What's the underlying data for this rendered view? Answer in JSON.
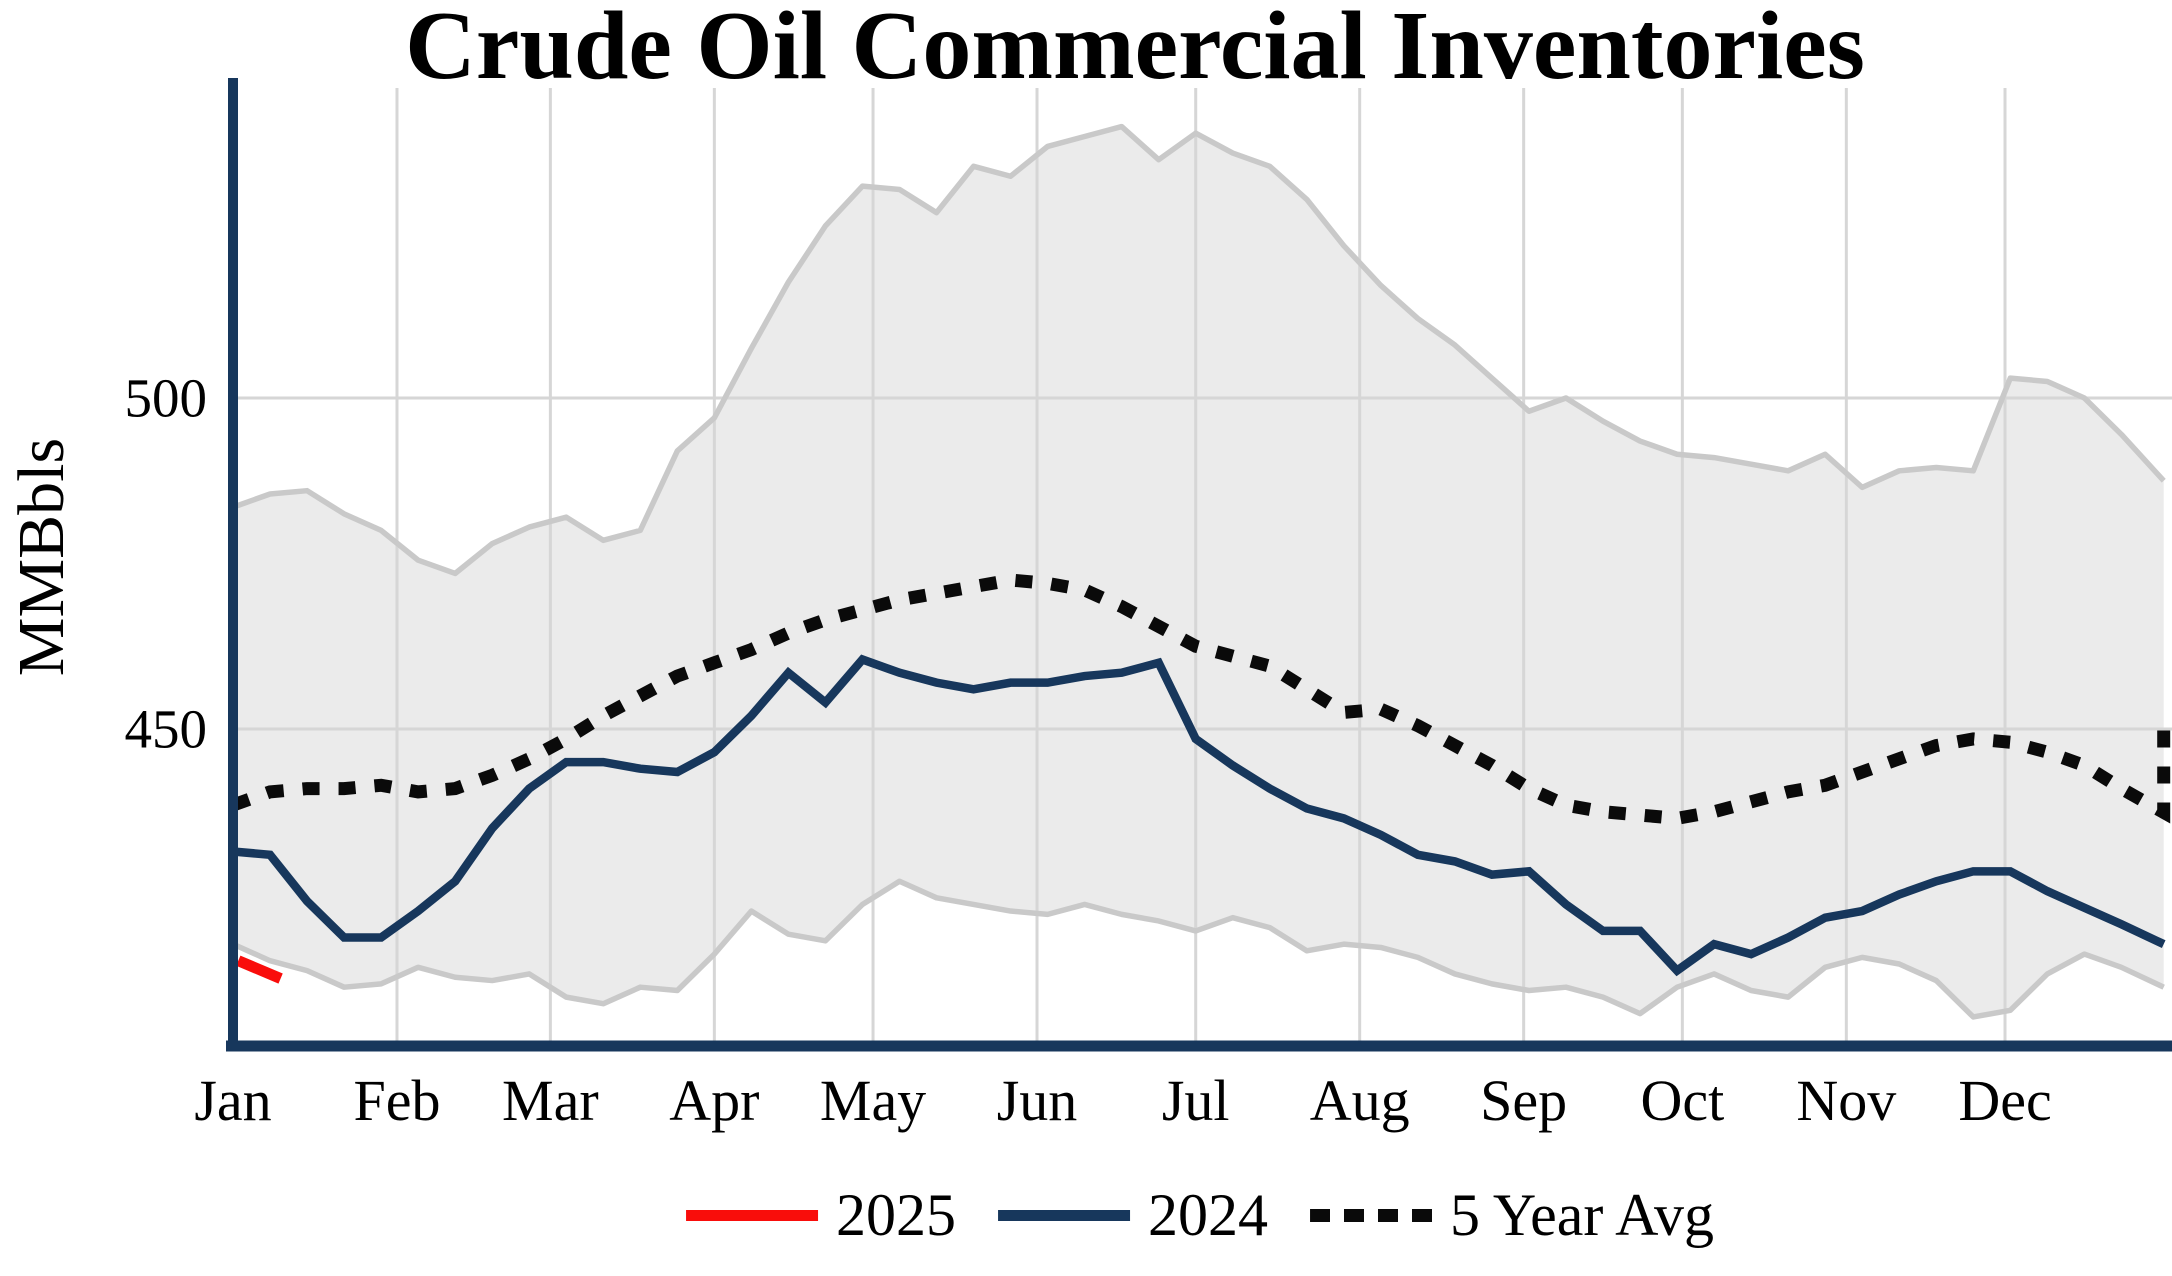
{
  "title": "Crude Oil Commercial Inventories",
  "y_axis": {
    "label": "MMBbls",
    "tick_labels": [
      "450",
      "500"
    ]
  },
  "legend": {
    "items": [
      {
        "label": "2025",
        "color": "#f90d0b",
        "style": "solid"
      },
      {
        "label": "2024",
        "color": "#17375c",
        "style": "solid"
      },
      {
        "label": "5 Year Avg",
        "color": "#0a0a0a",
        "style": "dotted"
      }
    ]
  },
  "colors": {
    "line_2025": "#f90d0b",
    "line_2024": "#17375c",
    "line_avg": "#0a0a0a",
    "band_fill": "#ebebeb",
    "band_edge": "#c9c9c9",
    "gridline": "#d6d6d6",
    "spine": "#17375c"
  },
  "chart_data": {
    "type": "line",
    "title": "Crude Oil Commercial Inventories",
    "xlabel": "",
    "ylabel": "MMBbls",
    "yticks": [
      450,
      500
    ],
    "ylim": [
      402,
      547
    ],
    "grid": true,
    "legend_position": "bottom-center",
    "x_domain_days": [
      0,
      366
    ],
    "month_labels": [
      "Jan",
      "Feb",
      "Mar",
      "Apr",
      "May",
      "Jun",
      "Jul",
      "Aug",
      "Sep",
      "Oct",
      "Nov",
      "Dec"
    ],
    "month_start_days": [
      0,
      31,
      60,
      91,
      121,
      152,
      182,
      213,
      244,
      274,
      305,
      335
    ],
    "band": {
      "name": "5 year range",
      "days": [
        0,
        7,
        14,
        21,
        28,
        35,
        42,
        49,
        56,
        63,
        70,
        77,
        84,
        91,
        98,
        105,
        112,
        119,
        126,
        133,
        140,
        147,
        154,
        161,
        168,
        175,
        182,
        189,
        196,
        203,
        210,
        217,
        224,
        231,
        238,
        245,
        252,
        259,
        266,
        273,
        280,
        287,
        294,
        301,
        308,
        315,
        322,
        329,
        336,
        343,
        350,
        357,
        365
      ],
      "max": [
        483.5,
        485.5,
        486,
        482.5,
        480,
        475.5,
        473.5,
        478,
        480.5,
        482,
        478.5,
        480,
        492,
        497,
        507.5,
        517.5,
        526,
        532,
        531.5,
        528,
        535,
        533.5,
        538,
        539.5,
        541,
        536,
        540,
        537,
        535,
        530,
        523,
        517,
        512,
        508,
        503,
        498,
        500,
        496.5,
        493.5,
        491.5,
        491,
        490,
        489,
        491.5,
        486.5,
        489,
        489.5,
        489,
        503,
        502.5,
        500,
        494.5,
        487.5
      ],
      "min": [
        417.5,
        415,
        413.5,
        411,
        411.5,
        414,
        412.5,
        412,
        413,
        409.5,
        408.5,
        411,
        410.5,
        416,
        422.5,
        419,
        418,
        423.5,
        427,
        424.5,
        423.5,
        422.5,
        422,
        423.5,
        422,
        421,
        419.5,
        421.5,
        420,
        416.5,
        417.5,
        417,
        415.5,
        413,
        411.5,
        410.5,
        411,
        409.5,
        407,
        411,
        413,
        410.5,
        409.5,
        414,
        415.5,
        414.5,
        412,
        406.5,
        407.5,
        413,
        416,
        414,
        411
      ]
    },
    "series": [
      {
        "name": "5 Year Avg",
        "style": "dotted",
        "days": [
          0,
          7,
          14,
          21,
          28,
          35,
          42,
          49,
          56,
          63,
          70,
          77,
          84,
          91,
          98,
          105,
          112,
          119,
          126,
          133,
          140,
          147,
          154,
          161,
          168,
          175,
          182,
          189,
          196,
          203,
          210,
          217,
          224,
          231,
          238,
          245,
          252,
          259,
          266,
          273,
          280,
          287,
          294,
          301,
          308,
          315,
          322,
          329,
          336,
          343,
          350,
          357,
          365,
          365
        ],
        "values": [
          438.5,
          440.5,
          441,
          441,
          441.5,
          440.5,
          441,
          443,
          445.5,
          448.5,
          452,
          455,
          458,
          460,
          462,
          464.5,
          466.5,
          468,
          469.5,
          470.5,
          471.5,
          472.5,
          472,
          471,
          468.5,
          465.5,
          462.5,
          461,
          459.5,
          456,
          452.5,
          453,
          450.5,
          447.5,
          444.5,
          441,
          438.5,
          437.5,
          437,
          436.5,
          437.5,
          439,
          440.5,
          441.5,
          443.5,
          445.5,
          447.5,
          448.5,
          448,
          446.5,
          444.5,
          441,
          437.4,
          450.9
        ]
      },
      {
        "name": "2024",
        "style": "solid",
        "days": [
          0,
          7,
          14,
          21,
          28,
          35,
          42,
          49,
          56,
          63,
          70,
          77,
          84,
          91,
          98,
          105,
          112,
          119,
          126,
          133,
          140,
          147,
          154,
          161,
          168,
          175,
          182,
          189,
          196,
          203,
          210,
          217,
          224,
          231,
          238,
          245,
          252,
          259,
          266,
          273,
          280,
          287,
          294,
          301,
          308,
          315,
          322,
          329,
          336,
          343,
          350,
          357,
          365
        ],
        "values": [
          431.5,
          431,
          424,
          418.5,
          418.5,
          422.5,
          427,
          435,
          441,
          445,
          445,
          444,
          443.5,
          446.5,
          452,
          458.5,
          454,
          460.5,
          458.5,
          457,
          456,
          457,
          457,
          458,
          458.5,
          460,
          448.5,
          444.5,
          441,
          438,
          436.5,
          434,
          431,
          430,
          428,
          428.5,
          423.5,
          419.5,
          419.5,
          413.5,
          417.5,
          416,
          418.5,
          421.5,
          422.5,
          425,
          427,
          428.5,
          428.5,
          425.5,
          423,
          420.5,
          417.5
        ]
      },
      {
        "name": "2025",
        "style": "solid",
        "days": [
          1,
          9
        ],
        "values": [
          415,
          412.3
        ]
      }
    ]
  }
}
